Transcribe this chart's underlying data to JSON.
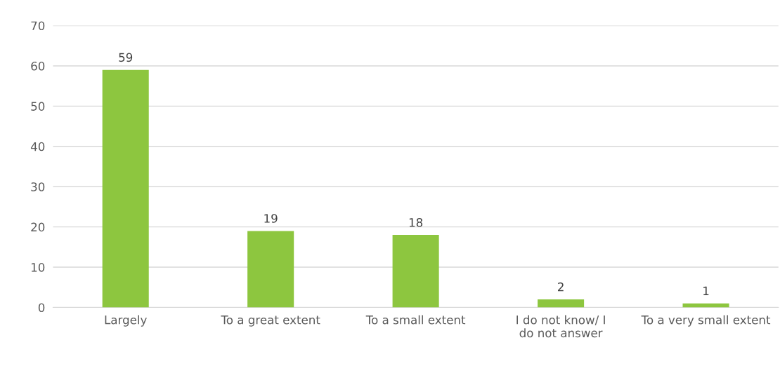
{
  "chart_data": {
    "type": "bar",
    "categories": [
      "Largely",
      "To a great extent",
      "To a small extent",
      "I do not know/ I do not answer",
      "To a very small extent"
    ],
    "values": [
      59,
      19,
      18,
      2,
      1
    ],
    "color": "#8dc63f",
    "ylim": [
      0,
      70
    ],
    "yticks": [
      0,
      10,
      20,
      30,
      40,
      50,
      60,
      70
    ],
    "grid": "y",
    "data_labels": true
  }
}
